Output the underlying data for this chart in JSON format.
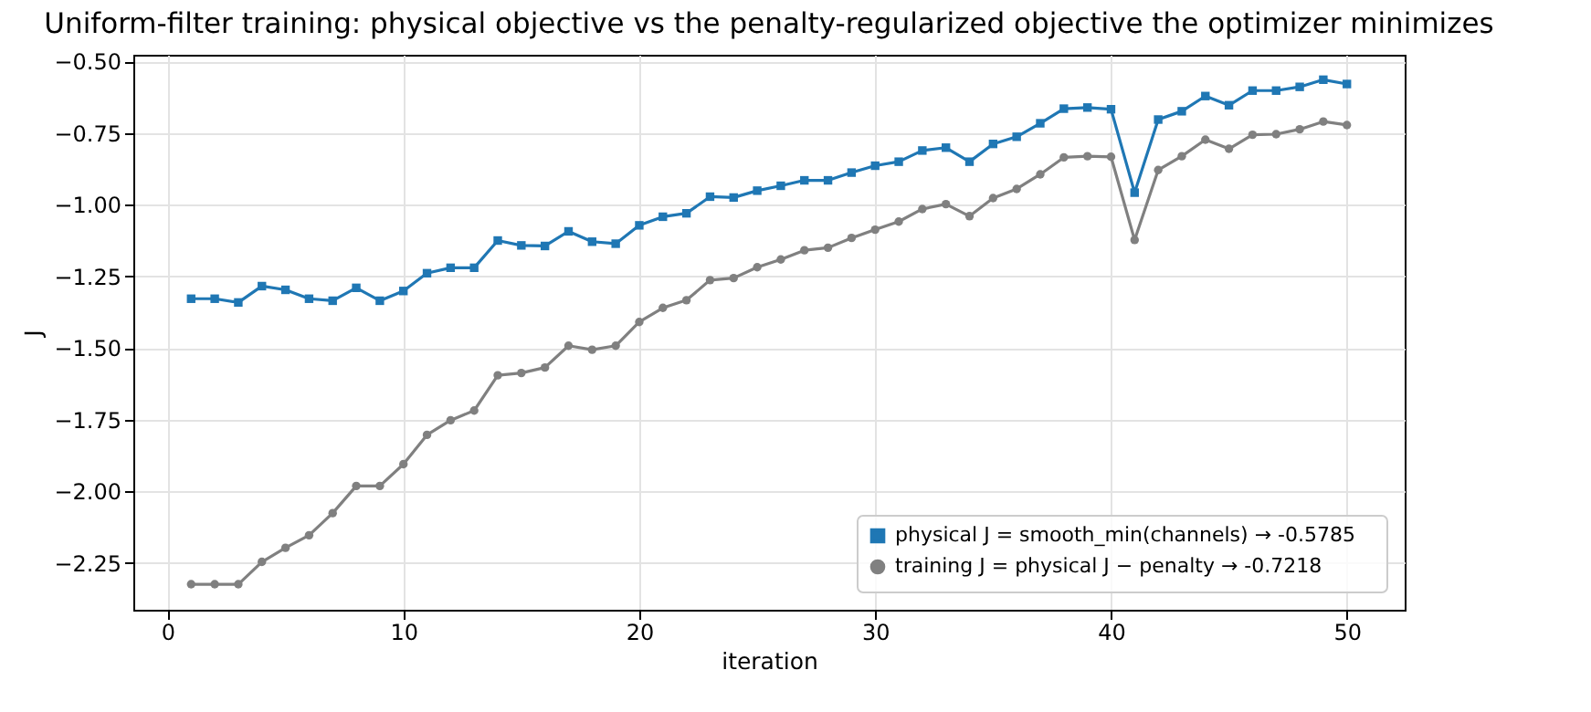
{
  "chart_data": {
    "type": "line",
    "title": "Uniform-filter training: physical objective vs the penalty-regularized objective the optimizer minimizes",
    "xlabel": "iteration",
    "ylabel": "J",
    "x": [
      1,
      2,
      3,
      4,
      5,
      6,
      7,
      8,
      9,
      10,
      11,
      12,
      13,
      14,
      15,
      16,
      17,
      18,
      19,
      20,
      21,
      22,
      23,
      24,
      25,
      26,
      27,
      28,
      29,
      30,
      31,
      32,
      33,
      34,
      35,
      36,
      37,
      38,
      39,
      40,
      41,
      42,
      43,
      44,
      45,
      46,
      47,
      48,
      49,
      50
    ],
    "series": [
      {
        "name": "physical J = smooth_min(channels)   →  -0.5785",
        "color": "#1f77b4",
        "marker": "square",
        "values": [
          -1.328,
          -1.328,
          -1.341,
          -1.284,
          -1.297,
          -1.328,
          -1.335,
          -1.29,
          -1.335,
          -1.301,
          -1.239,
          -1.22,
          -1.22,
          -1.125,
          -1.142,
          -1.144,
          -1.093,
          -1.129,
          -1.136,
          -1.072,
          -1.042,
          -1.03,
          -0.972,
          -0.975,
          -0.951,
          -0.934,
          -0.915,
          -0.915,
          -0.888,
          -0.864,
          -0.85,
          -0.811,
          -0.801,
          -0.85,
          -0.788,
          -0.763,
          -0.716,
          -0.665,
          -0.661,
          -0.667,
          -0.958,
          -0.703,
          -0.674,
          -0.621,
          -0.653,
          -0.602,
          -0.602,
          -0.589,
          -0.564,
          -0.579
        ]
      },
      {
        "name": "training J = physical J − penalty   →  -0.7218",
        "color": "#808080",
        "marker": "circle",
        "values": [
          -2.324,
          -2.324,
          -2.324,
          -2.246,
          -2.197,
          -2.153,
          -2.076,
          -1.981,
          -1.981,
          -1.905,
          -1.803,
          -1.752,
          -1.718,
          -1.595,
          -1.587,
          -1.568,
          -1.492,
          -1.506,
          -1.492,
          -1.409,
          -1.36,
          -1.333,
          -1.263,
          -1.256,
          -1.218,
          -1.191,
          -1.159,
          -1.15,
          -1.116,
          -1.087,
          -1.059,
          -1.015,
          -0.998,
          -1.04,
          -0.977,
          -0.945,
          -0.894,
          -0.835,
          -0.831,
          -0.833,
          -1.123,
          -0.879,
          -0.831,
          -0.773,
          -0.805,
          -0.756,
          -0.754,
          -0.737,
          -0.71,
          -0.722
        ]
      }
    ],
    "xlim": [
      -1.45,
      52.45
    ],
    "ylim": [
      -2.413,
      -0.477
    ],
    "xticks": [
      0,
      10,
      20,
      30,
      40,
      50
    ],
    "yticks": [
      {
        "value": -2.25,
        "label": "−2.25"
      },
      {
        "value": -2.0,
        "label": "−2.00"
      },
      {
        "value": -1.75,
        "label": "−1.75"
      },
      {
        "value": -1.5,
        "label": "−1.50"
      },
      {
        "value": -1.25,
        "label": "−1.25"
      },
      {
        "value": -1.0,
        "label": "−1.00"
      },
      {
        "value": -0.75,
        "label": "−0.75"
      },
      {
        "value": -0.5,
        "label": "−0.50"
      }
    ],
    "grid": true,
    "legend": "bottom right"
  }
}
